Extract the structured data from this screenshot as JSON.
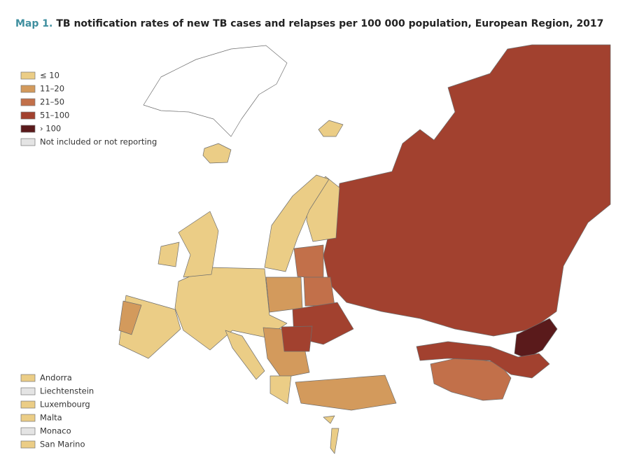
{
  "title": {
    "prefix": "Map 1.",
    "text": "TB notification rates of new TB cases and relapses per 100 000 population, European Region, 2017"
  },
  "legend": [
    {
      "label": "≤ 10",
      "color": "#ebcd86"
    },
    {
      "label": "11–20",
      "color": "#d39a5c"
    },
    {
      "label": "21–50",
      "color": "#c2704a"
    },
    {
      "label": "51–100",
      "color": "#a2412f"
    },
    {
      "label": "› 100",
      "color": "#5a1a1b"
    },
    {
      "label": "Not included or not reporting",
      "color": "#e4e4e4"
    }
  ],
  "small_states": [
    {
      "label": "Andorra",
      "color": "#ebcd86"
    },
    {
      "label": "Liechtenstein",
      "color": "#e4e4e4"
    },
    {
      "label": "Luxembourg",
      "color": "#ebcd86"
    },
    {
      "label": "Malta",
      "color": "#ebcd86"
    },
    {
      "label": "Monaco",
      "color": "#e4e4e4"
    },
    {
      "label": "San Marino",
      "color": "#ebcd86"
    }
  ]
}
